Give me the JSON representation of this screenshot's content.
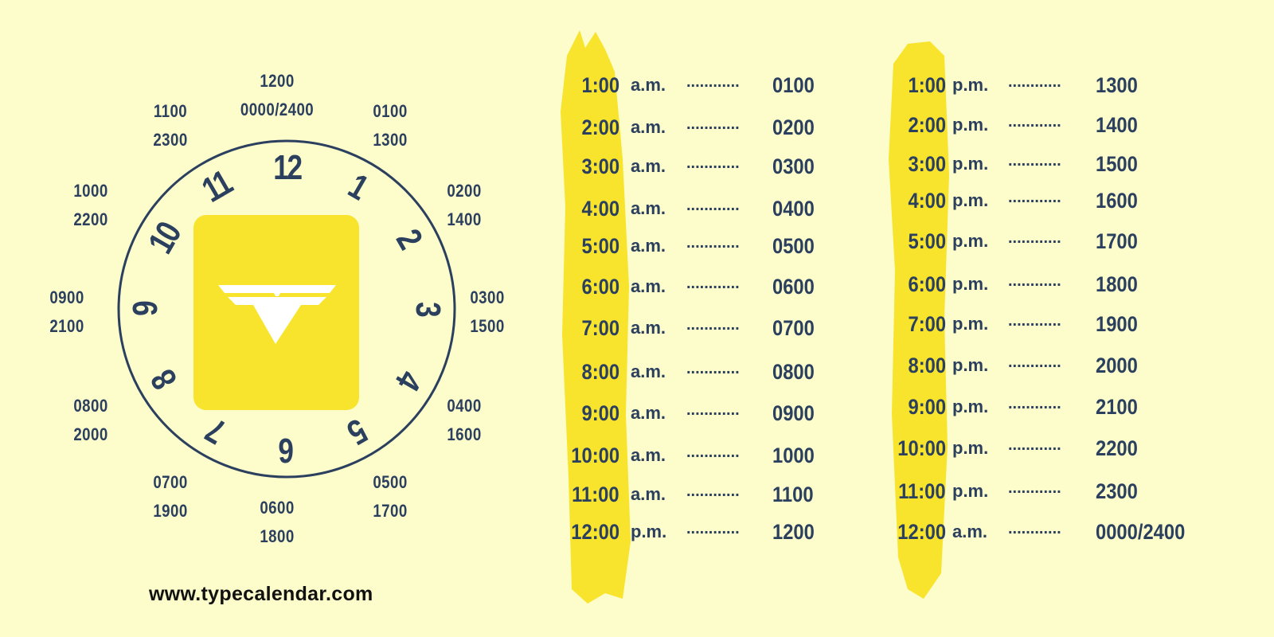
{
  "colors": {
    "background": "#fdfccb",
    "text": "#2b3f5e",
    "accent_yellow": "#f8e42c"
  },
  "clock": {
    "numerals": [
      "12",
      "1",
      "2",
      "3",
      "4",
      "5",
      "6",
      "7",
      "8",
      "9",
      "10",
      "11"
    ],
    "outer_labels": [
      {
        "h12": "1200",
        "h24": "0000/2400"
      },
      {
        "h12": "0100",
        "h24": "1300"
      },
      {
        "h12": "0200",
        "h24": "1400"
      },
      {
        "h12": "0300",
        "h24": "1500"
      },
      {
        "h12": "0400",
        "h24": "1600"
      },
      {
        "h12": "0500",
        "h24": "1700"
      },
      {
        "h12": "0600",
        "h24": "1800"
      },
      {
        "h12": "0700",
        "h24": "1900"
      },
      {
        "h12": "0800",
        "h24": "2000"
      },
      {
        "h12": "0900",
        "h24": "2100"
      },
      {
        "h12": "1000",
        "h24": "2200"
      },
      {
        "h12": "1100",
        "h24": "2300"
      }
    ],
    "logo_icon": "typecalendar-v-logo"
  },
  "tables": [
    {
      "rows": [
        {
          "time": "1:00",
          "period": "a.m.",
          "dots": "............",
          "military": "0100"
        },
        {
          "time": "2:00",
          "period": "a.m.",
          "dots": "............",
          "military": "0200"
        },
        {
          "time": "3:00",
          "period": "a.m.",
          "dots": "............",
          "military": "0300"
        },
        {
          "time": "4:00",
          "period": "a.m.",
          "dots": "............",
          "military": "0400"
        },
        {
          "time": "5:00",
          "period": "a.m.",
          "dots": "............",
          "military": "0500"
        },
        {
          "time": "6:00",
          "period": "a.m.",
          "dots": "............",
          "military": "0600"
        },
        {
          "time": "7:00",
          "period": "a.m.",
          "dots": "............",
          "military": "0700"
        },
        {
          "time": "8:00",
          "period": "a.m.",
          "dots": "............",
          "military": "0800"
        },
        {
          "time": "9:00",
          "period": "a.m.",
          "dots": "............",
          "military": "0900"
        },
        {
          "time": "10:00",
          "period": "a.m.",
          "dots": "............",
          "military": "1000"
        },
        {
          "time": "11:00",
          "period": "a.m.",
          "dots": "............",
          "military": "1100"
        },
        {
          "time": "12:00",
          "period": "p.m.",
          "dots": "............",
          "military": "1200"
        }
      ]
    },
    {
      "rows": [
        {
          "time": "1:00",
          "period": "p.m.",
          "dots": "............",
          "military": "1300"
        },
        {
          "time": "2:00",
          "period": "p.m.",
          "dots": "............",
          "military": "1400"
        },
        {
          "time": "3:00",
          "period": "p.m.",
          "dots": "............",
          "military": "1500"
        },
        {
          "time": "4:00",
          "period": "p.m.",
          "dots": "............",
          "military": "1600"
        },
        {
          "time": "5:00",
          "period": "p.m.",
          "dots": "............",
          "military": "1700"
        },
        {
          "time": "6:00",
          "period": "p.m.",
          "dots": "............",
          "military": "1800"
        },
        {
          "time": "7:00",
          "period": "p.m.",
          "dots": "............",
          "military": "1900"
        },
        {
          "time": "8:00",
          "period": "p.m.",
          "dots": "............",
          "military": "2000"
        },
        {
          "time": "9:00",
          "period": "p.m.",
          "dots": "............",
          "military": "2100"
        },
        {
          "time": "10:00",
          "period": "p.m.",
          "dots": "............",
          "military": "2200"
        },
        {
          "time": "11:00",
          "period": "p.m.",
          "dots": "............",
          "military": "2300"
        },
        {
          "time": "12:00",
          "period": "a.m.",
          "dots": "............",
          "military": "0000/2400"
        }
      ]
    }
  ],
  "footer": {
    "website": "www.typecalendar.com"
  }
}
